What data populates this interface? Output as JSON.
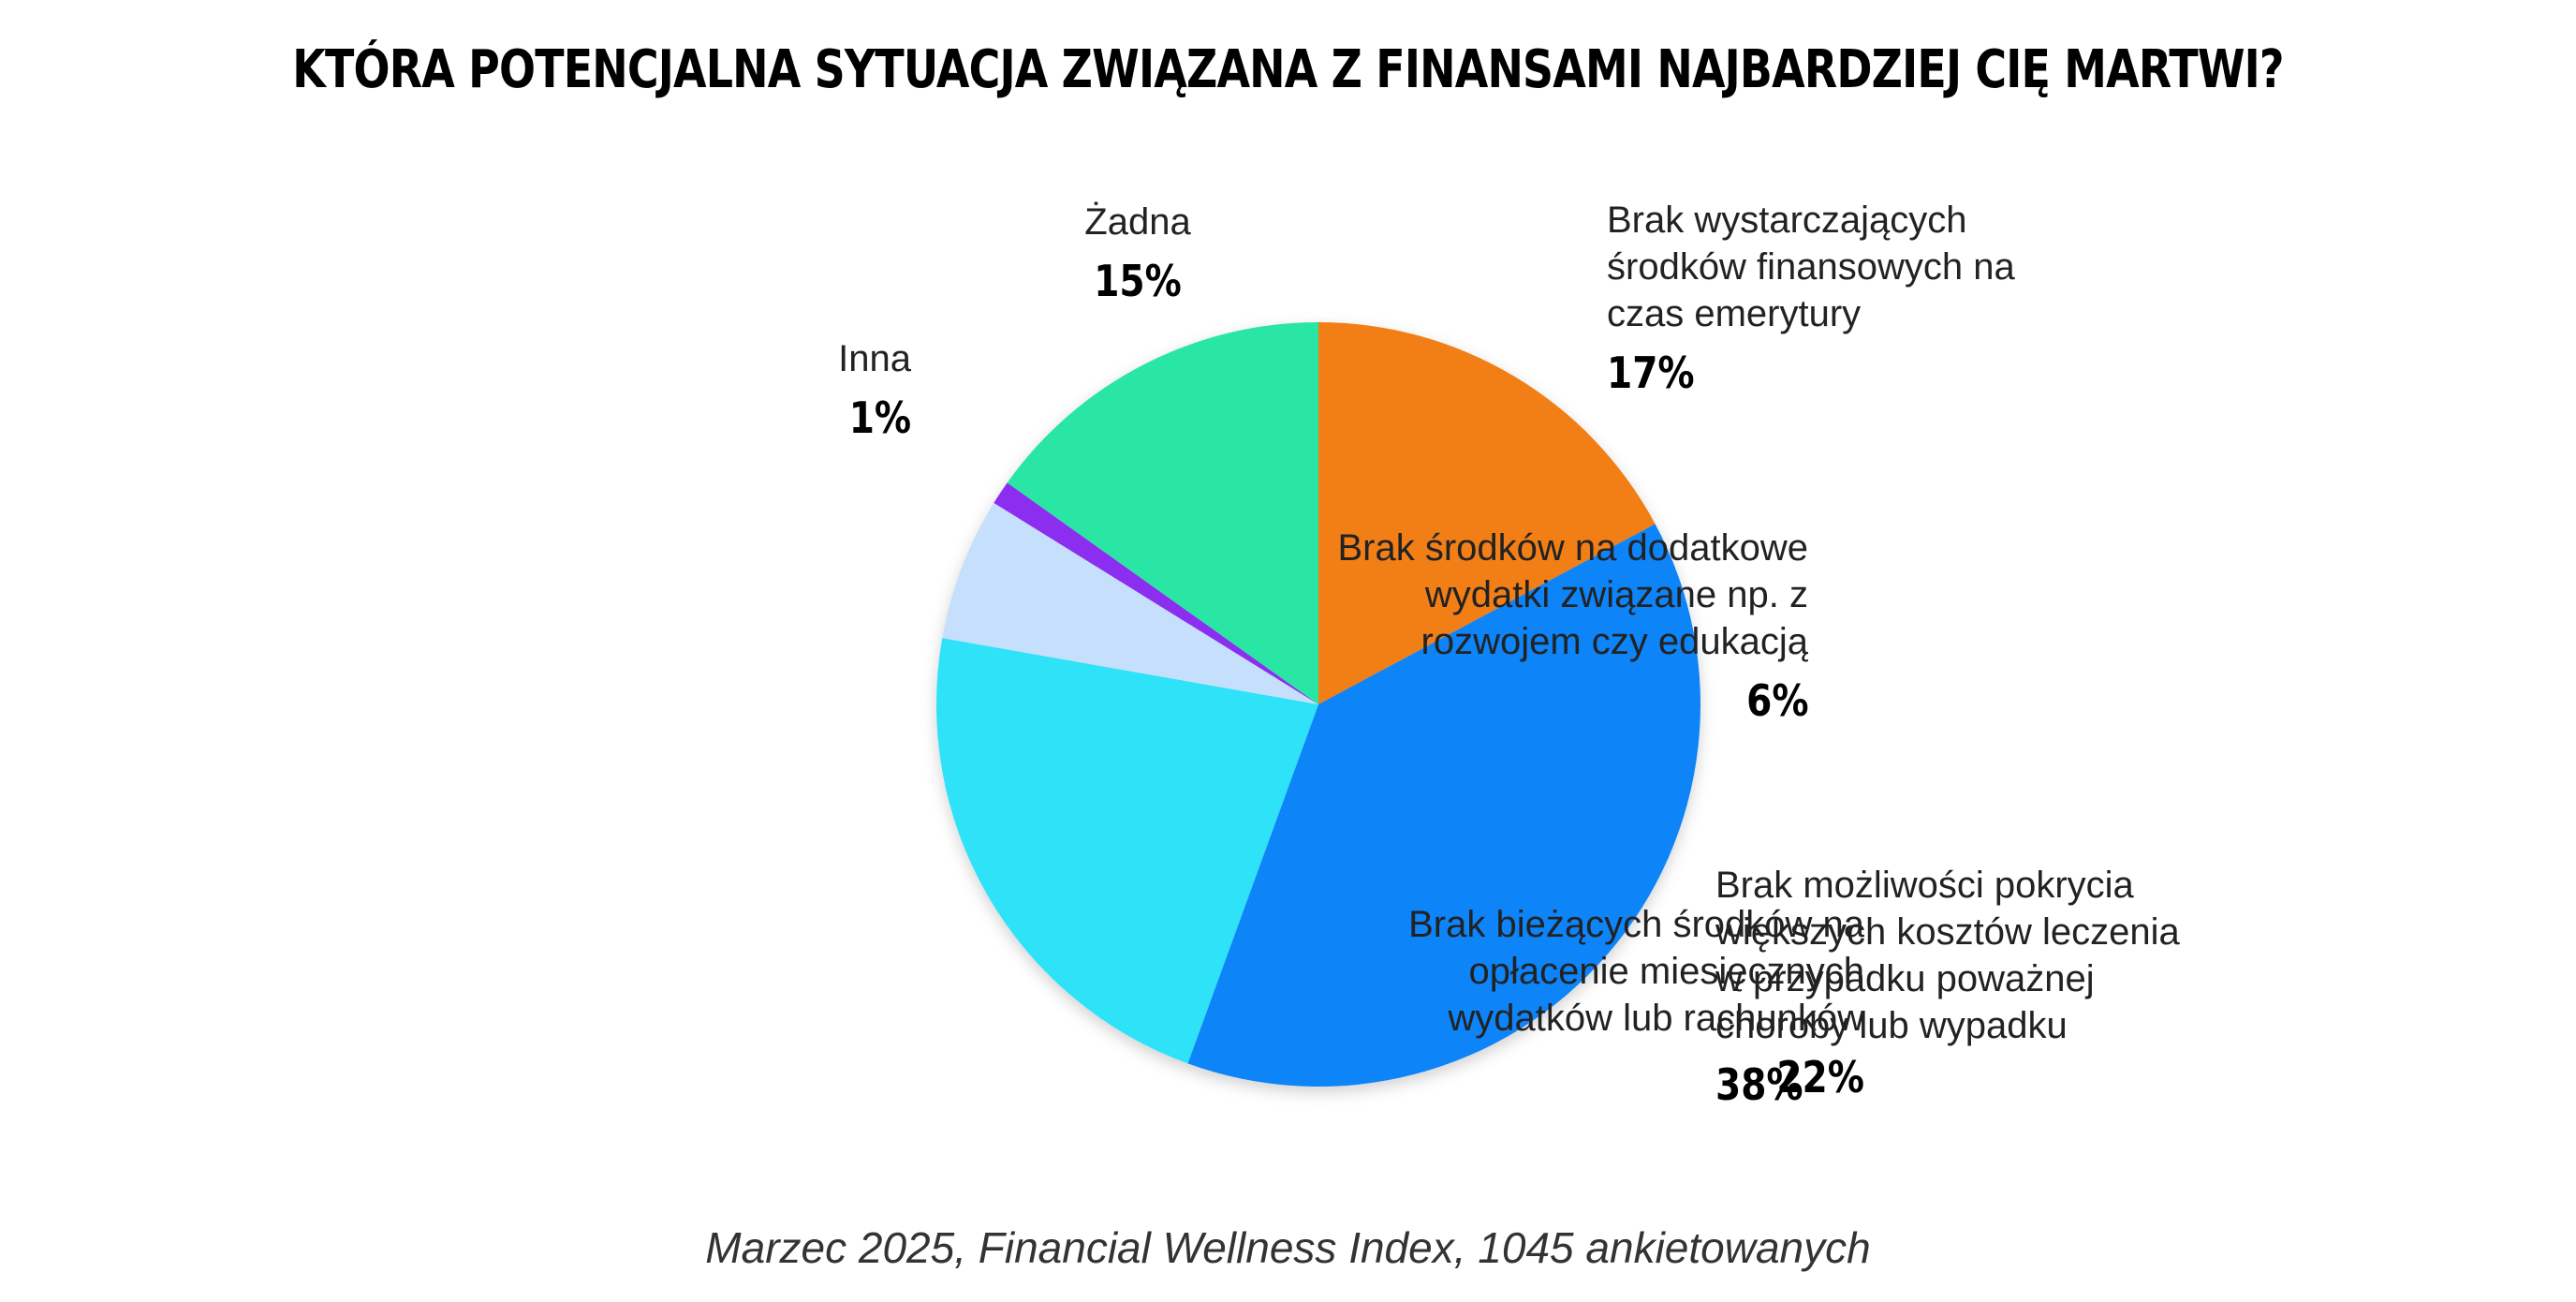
{
  "chart_data": {
    "type": "pie",
    "title": "KTÓRA POTENCJALNA SYTUACJA ZWIĄZANA Z FINANSAMI NAJBARDZIEJ CIĘ MARTWI?",
    "slices": [
      {
        "label": "Brak wystarczających\nśrodków finansowych na\nczas emerytury",
        "value": 17,
        "display": "17%",
        "color": "#F27F18"
      },
      {
        "label": "Brak możliwości pokrycia\nwiększych kosztów leczenia\nw przypadku poważnej\nchoroby lub wypadku",
        "value": 38,
        "display": "38%",
        "color": "#0A84F8"
      },
      {
        "label": "Brak bieżących środków na\nopłacenie miesięcznych\nwydatków lub rachunków",
        "value": 22,
        "display": "22%",
        "color": "#2EE2F8"
      },
      {
        "label": "Brak środków na dodatkowe\nwydatki związane np. z\nrozwojem czy edukacją",
        "value": 6,
        "display": "6%",
        "color": "#C6DFFD"
      },
      {
        "label": "Inna",
        "value": 1,
        "display": "1%",
        "color": "#8B2FF0"
      },
      {
        "label": "Żadna",
        "value": 15,
        "display": "15%",
        "color": "#29E6A5"
      }
    ],
    "start_angle_deg": 0,
    "direction": "clockwise"
  },
  "footnote": "Marzec 2025, Financial Wellness Index, 1045 ankietowanych"
}
